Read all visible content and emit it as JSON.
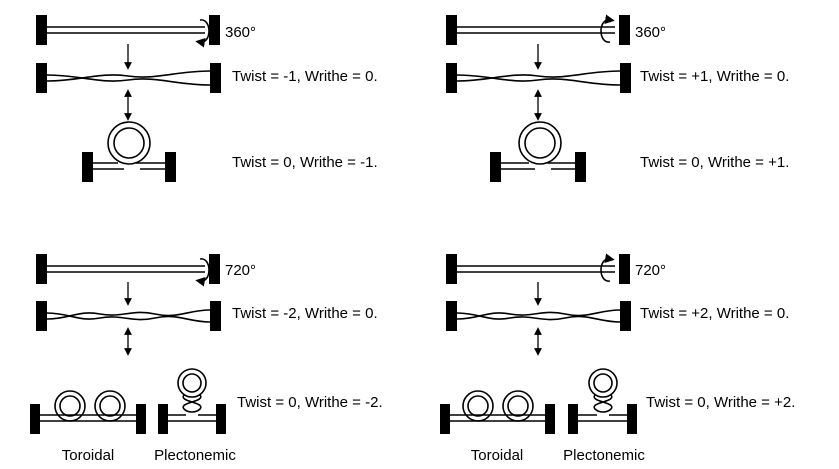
{
  "panels": [
    {
      "angle": "360°",
      "rotation": "left-handed",
      "twisted_state": "Twist = -1, Writhe = 0.",
      "writhed_state": "Twist = 0, Writhe = -1."
    },
    {
      "angle": "360°",
      "rotation": "right-handed",
      "twisted_state": "Twist = +1, Writhe = 0.",
      "writhed_state": "Twist = 0, Writhe = +1."
    },
    {
      "angle": "720°",
      "rotation": "left-handed",
      "twisted_state": "Twist = -2, Writhe = 0.",
      "writhed_state": "Twist = 0, Writhe = -2.",
      "captions": [
        "Toroidal",
        "Plectonemic"
      ]
    },
    {
      "angle": "720°",
      "rotation": "right-handed",
      "twisted_state": "Twist = +2, Writhe = 0.",
      "writhed_state": "Twist = 0, Writhe = +2.",
      "captions": [
        "Toroidal",
        "Plectonemic"
      ]
    }
  ],
  "colors": {
    "ink": "#000000",
    "background": "#ffffff"
  }
}
